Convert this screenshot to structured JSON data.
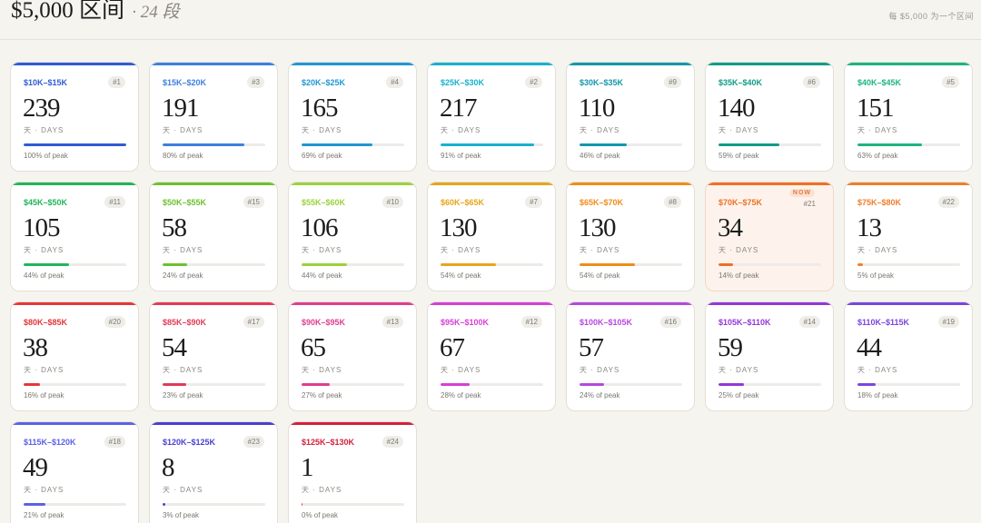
{
  "header": {
    "title": "$5,000 区间",
    "subtitle": "· 24 段",
    "hint": "每 $5,000 为一个区间"
  },
  "unit_label": "天 · DAYS",
  "now_label": "NOW",
  "buckets": [
    {
      "range": "$10K–$15K",
      "rank": "#1",
      "days": "239",
      "peak_label": "100% of peak",
      "peak_fraction": 1.0,
      "color": "#2f5bd6",
      "current": false
    },
    {
      "range": "$15K–$20K",
      "rank": "#3",
      "days": "191",
      "peak_label": "80% of peak",
      "peak_fraction": 0.8,
      "color": "#3d7fe0",
      "current": false
    },
    {
      "range": "$20K–$25K",
      "rank": "#4",
      "days": "165",
      "peak_label": "69% of peak",
      "peak_fraction": 0.69,
      "color": "#1f97d4",
      "current": false
    },
    {
      "range": "$25K–$30K",
      "rank": "#2",
      "days": "217",
      "peak_label": "91% of peak",
      "peak_fraction": 0.91,
      "color": "#17b1cf",
      "current": false
    },
    {
      "range": "$30K–$35K",
      "rank": "#9",
      "days": "110",
      "peak_label": "46% of peak",
      "peak_fraction": 0.46,
      "color": "#1198ab",
      "current": false
    },
    {
      "range": "$35K–$40K",
      "rank": "#6",
      "days": "140",
      "peak_label": "59% of peak",
      "peak_fraction": 0.59,
      "color": "#109c86",
      "current": false
    },
    {
      "range": "$40K–$45K",
      "rank": "#5",
      "days": "151",
      "peak_label": "63% of peak",
      "peak_fraction": 0.63,
      "color": "#1db47d",
      "current": false
    },
    {
      "range": "$45K–$50K",
      "rank": "#11",
      "days": "105",
      "peak_label": "44% of peak",
      "peak_fraction": 0.44,
      "color": "#22b55a",
      "current": false
    },
    {
      "range": "$50K–$55K",
      "rank": "#15",
      "days": "58",
      "peak_label": "24% of peak",
      "peak_fraction": 0.24,
      "color": "#6cc12d",
      "current": false
    },
    {
      "range": "$55K–$60K",
      "rank": "#10",
      "days": "106",
      "peak_label": "44% of peak",
      "peak_fraction": 0.44,
      "color": "#9bd23a",
      "current": false
    },
    {
      "range": "$60K–$65K",
      "rank": "#7",
      "days": "130",
      "peak_label": "54% of peak",
      "peak_fraction": 0.54,
      "color": "#e6a51a",
      "current": false
    },
    {
      "range": "$65K–$70K",
      "rank": "#8",
      "days": "130",
      "peak_label": "54% of peak",
      "peak_fraction": 0.54,
      "color": "#f08c1a",
      "current": false
    },
    {
      "range": "$70K–$75K",
      "rank": "#21",
      "days": "34",
      "peak_label": "14% of peak",
      "peak_fraction": 0.14,
      "color": "#ee7026",
      "current": true
    },
    {
      "range": "$75K–$80K",
      "rank": "#22",
      "days": "13",
      "peak_label": "5% of peak",
      "peak_fraction": 0.05,
      "color": "#f07e2c",
      "current": false
    },
    {
      "range": "$80K–$85K",
      "rank": "#20",
      "days": "38",
      "peak_label": "16% of peak",
      "peak_fraction": 0.16,
      "color": "#e5363a",
      "current": false
    },
    {
      "range": "$85K–$90K",
      "rank": "#17",
      "days": "54",
      "peak_label": "23% of peak",
      "peak_fraction": 0.23,
      "color": "#e23a57",
      "current": false
    },
    {
      "range": "$90K–$95K",
      "rank": "#13",
      "days": "65",
      "peak_label": "27% of peak",
      "peak_fraction": 0.27,
      "color": "#e03d8f",
      "current": false
    },
    {
      "range": "$95K–$100K",
      "rank": "#12",
      "days": "67",
      "peak_label": "28% of peak",
      "peak_fraction": 0.28,
      "color": "#d63fd6",
      "current": false
    },
    {
      "range": "$100K–$105K",
      "rank": "#16",
      "days": "57",
      "peak_label": "24% of peak",
      "peak_fraction": 0.24,
      "color": "#b548e0",
      "current": false
    },
    {
      "range": "$105K–$110K",
      "rank": "#14",
      "days": "59",
      "peak_label": "25% of peak",
      "peak_fraction": 0.25,
      "color": "#9337d8",
      "current": false
    },
    {
      "range": "$110K–$115K",
      "rank": "#19",
      "days": "44",
      "peak_label": "18% of peak",
      "peak_fraction": 0.18,
      "color": "#7a45e0",
      "current": false
    },
    {
      "range": "$115K–$120K",
      "rank": "#18",
      "days": "49",
      "peak_label": "21% of peak",
      "peak_fraction": 0.21,
      "color": "#5a62e6",
      "current": false
    },
    {
      "range": "$120K–$125K",
      "rank": "#23",
      "days": "8",
      "peak_label": "3% of peak",
      "peak_fraction": 0.03,
      "color": "#4a3fd0",
      "current": false
    },
    {
      "range": "$125K–$130K",
      "rank": "#24",
      "days": "1",
      "peak_label": "0% of peak",
      "peak_fraction": 0.004,
      "color": "#d6203e",
      "current": false
    }
  ]
}
